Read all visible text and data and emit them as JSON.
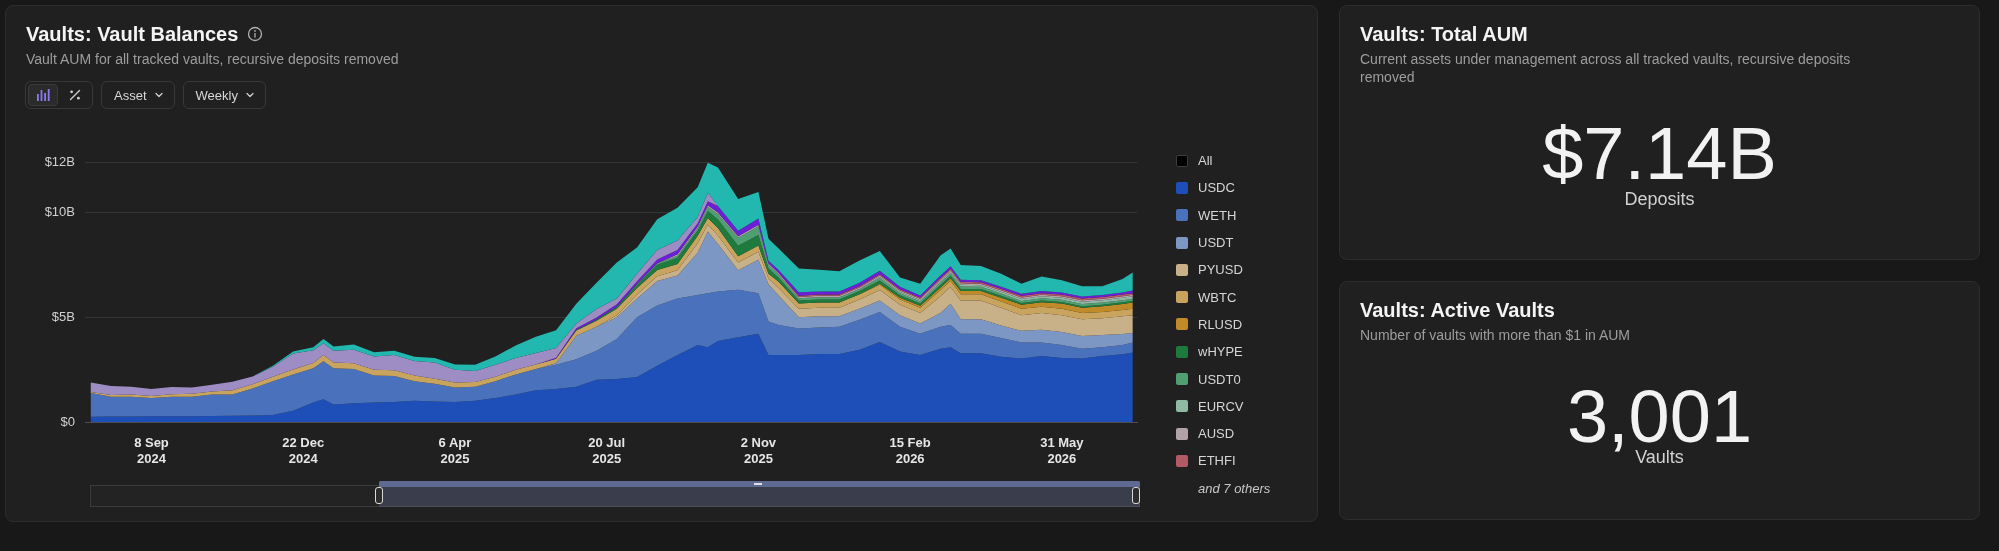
{
  "chart_data": [
    {
      "type": "area",
      "title": "Vaults: Vault Balances",
      "subtitle": "Vault AUM for all tracked vaults, recursive deposits removed",
      "stacked": true,
      "grid": "y",
      "legend": "right",
      "legend_title": "All",
      "annotations": [
        "Asset",
        "Weekly",
        "and 7 others"
      ],
      "x": [
        "2024-07-28",
        "2024-08-11",
        "2024-08-25",
        "2024-09-08",
        "2024-09-22",
        "2024-10-06",
        "2024-10-20",
        "2024-11-03",
        "2024-11-17",
        "2024-12-01",
        "2024-12-15",
        "2024-12-29",
        "2025-01-05",
        "2025-01-12",
        "2025-01-26",
        "2025-02-09",
        "2025-02-23",
        "2025-03-09",
        "2025-03-23",
        "2025-04-06",
        "2025-04-20",
        "2025-05-04",
        "2025-05-18",
        "2025-06-01",
        "2025-06-15",
        "2025-06-29",
        "2025-07-13",
        "2025-07-27",
        "2025-08-10",
        "2025-08-24",
        "2025-09-07",
        "2025-09-21",
        "2025-09-28",
        "2025-10-05",
        "2025-10-19",
        "2025-11-02",
        "2025-11-09",
        "2025-11-16",
        "2025-11-30",
        "2025-12-14",
        "2025-12-28",
        "2026-01-11",
        "2026-01-25",
        "2026-02-08",
        "2026-02-22",
        "2026-03-08",
        "2026-03-15",
        "2026-03-22",
        "2026-04-05",
        "2026-04-19",
        "2026-05-03",
        "2026-05-17",
        "2026-05-31",
        "2026-06-14",
        "2026-06-28",
        "2026-07-12",
        "2026-07-19"
      ],
      "xlim": [
        "2024-07-24",
        "2026-07-22"
      ],
      "xticks": [
        {
          "value": "2024-09-08",
          "label": "8 Sep\n2024"
        },
        {
          "value": "2024-12-22",
          "label": "22 Dec\n2024"
        },
        {
          "value": "2025-04-06",
          "label": "6 Apr\n2025"
        },
        {
          "value": "2025-07-20",
          "label": "20 Jul\n2025"
        },
        {
          "value": "2025-11-02",
          "label": "2 Nov\n2025"
        },
        {
          "value": "2026-02-15",
          "label": "15 Feb\n2026"
        },
        {
          "value": "2026-05-31",
          "label": "31 May\n2026"
        }
      ],
      "ylim": [
        0,
        12.37
      ],
      "yticks": [
        {
          "value": 0,
          "label": "$0"
        },
        {
          "value": 5,
          "label": "$5B"
        },
        {
          "value": 10,
          "label": "$10B"
        },
        {
          "value": 12.37,
          "label": "$12B"
        }
      ],
      "series": [
        {
          "name": "USDC",
          "color": "#1e4fb8",
          "values": [
            0.25,
            0.26,
            0.26,
            0.27,
            0.27,
            0.28,
            0.29,
            0.3,
            0.31,
            0.34,
            0.54,
            0.93,
            1.09,
            0.84,
            0.89,
            0.93,
            0.96,
            1.01,
            0.98,
            0.96,
            1.01,
            1.14,
            1.31,
            1.52,
            1.57,
            1.68,
            2.02,
            2.05,
            2.15,
            2.69,
            3.2,
            3.67,
            3.57,
            3.87,
            4.04,
            4.21,
            3.2,
            3.2,
            3.2,
            3.25,
            3.25,
            3.45,
            3.82,
            3.37,
            3.2,
            3.5,
            3.57,
            3.28,
            3.28,
            3.11,
            3.03,
            3.15,
            3.06,
            3.03,
            3.15,
            3.23,
            3.32
          ]
        },
        {
          "name": "WETH",
          "color": "#4a72bc",
          "values": [
            1.13,
            0.95,
            0.95,
            0.87,
            0.94,
            0.93,
            1.02,
            1.01,
            1.29,
            1.6,
            1.73,
            1.63,
            1.81,
            1.72,
            1.64,
            1.29,
            1.23,
            0.93,
            0.84,
            0.69,
            0.67,
            0.8,
            0.96,
            1.01,
            1.16,
            1.32,
            1.38,
            1.91,
            2.85,
            2.87,
            2.69,
            2.39,
            2.58,
            2.36,
            2.27,
            1.93,
            1.6,
            1.43,
            1.26,
            1.26,
            1.3,
            1.43,
            1.43,
            1.18,
            1.01,
            1.05,
            1.06,
            0.93,
            0.93,
            0.9,
            0.76,
            0.64,
            0.61,
            0.47,
            0.42,
            0.44,
            0.47
          ]
        },
        {
          "name": "USDT",
          "color": "#7d97c4",
          "values": [
            null,
            null,
            null,
            null,
            null,
            null,
            null,
            null,
            null,
            null,
            null,
            null,
            null,
            null,
            null,
            null,
            null,
            null,
            null,
            null,
            null,
            null,
            null,
            0,
            0.07,
            1.12,
            1.15,
            1.04,
            0.89,
            1.17,
            1.1,
            2.02,
            2.94,
            2.27,
            0.93,
            1.6,
            1.77,
            1.41,
            0.54,
            0.54,
            0.5,
            0.52,
            0.55,
            0.55,
            0.49,
            0.65,
            1.01,
            0.69,
            0.69,
            0.59,
            0.56,
            0.61,
            0.63,
            0.6,
            0.58,
            0.53,
            0.46
          ]
        },
        {
          "name": "PYUSD",
          "color": "#c8b088",
          "values": [
            null,
            null,
            null,
            null,
            null,
            null,
            null,
            null,
            null,
            null,
            null,
            null,
            null,
            null,
            null,
            null,
            null,
            null,
            null,
            null,
            null,
            null,
            null,
            null,
            null,
            null,
            0,
            0.1,
            0.2,
            0.22,
            0.25,
            0.45,
            0.34,
            0.4,
            0.37,
            0.38,
            0.28,
            0.35,
            0.4,
            0.4,
            0.4,
            0.45,
            0.5,
            0.5,
            0.5,
            0.8,
            0.8,
            0.9,
            0.9,
            0.85,
            0.75,
            0.8,
            0.8,
            0.8,
            0.8,
            0.85,
            0.85
          ]
        },
        {
          "name": "WBTC",
          "color": "#c8a45e",
          "values": [
            0.05,
            0.08,
            0.1,
            0.1,
            0.12,
            0.14,
            0.15,
            0.2,
            0.2,
            0.22,
            0.24,
            0.26,
            0.3,
            0.28,
            0.27,
            0.27,
            0.28,
            0.28,
            0.25,
            0.24,
            0.23,
            0.22,
            0.22,
            0.22,
            0.22,
            0.25,
            0.28,
            0.3,
            0.3,
            0.3,
            0.3,
            0.36,
            0.3,
            0.36,
            0.3,
            0.3,
            0.22,
            0.3,
            0.25,
            0.25,
            0.25,
            0.25,
            0.25,
            0.25,
            0.25,
            0.3,
            0.3,
            0.3,
            0.3,
            0.3,
            0.3,
            0.3,
            0.3,
            0.3,
            0.3,
            0.3,
            0.3
          ]
        },
        {
          "name": "RLUSD",
          "color": "#c08a28",
          "values": [
            null,
            null,
            null,
            null,
            null,
            null,
            null,
            null,
            null,
            null,
            null,
            null,
            null,
            null,
            null,
            null,
            null,
            null,
            null,
            null,
            null,
            null,
            null,
            null,
            null,
            null,
            null,
            null,
            null,
            null,
            null,
            null,
            null,
            null,
            null,
            null,
            null,
            null,
            null,
            null,
            null,
            0,
            0.05,
            0.08,
            0.1,
            0.12,
            0.12,
            0.15,
            0.15,
            0.18,
            0.2,
            0.22,
            0.25,
            0.25,
            0.27,
            0.28,
            0.3
          ]
        },
        {
          "name": "wHYPE",
          "color": "#1f7a3d",
          "values": [
            null,
            null,
            null,
            null,
            null,
            null,
            null,
            null,
            null,
            null,
            null,
            null,
            null,
            null,
            null,
            null,
            null,
            null,
            null,
            null,
            null,
            null,
            null,
            null,
            0,
            0.03,
            0.06,
            0.1,
            0.15,
            0.25,
            0.3,
            0.25,
            0.34,
            0.4,
            0.5,
            0.5,
            0.25,
            0.2,
            0.15,
            0.15,
            0.15,
            0.15,
            0.15,
            0.12,
            0.1,
            0.12,
            0.12,
            0.1,
            0.1,
            0.1,
            0.08,
            0.08,
            0.08,
            0.08,
            0.08,
            0.08,
            0.08
          ]
        },
        {
          "name": "USDT0",
          "color": "#4f9f72",
          "values": [
            null,
            null,
            null,
            null,
            null,
            null,
            null,
            null,
            null,
            null,
            null,
            null,
            null,
            null,
            null,
            null,
            null,
            null,
            null,
            null,
            null,
            null,
            null,
            null,
            null,
            null,
            null,
            0,
            0.05,
            0.08,
            0.1,
            0.12,
            0.2,
            0.27,
            0.38,
            0.42,
            0.17,
            0.15,
            0.1,
            0.1,
            0.1,
            0.1,
            0.12,
            0.1,
            0.1,
            0.12,
            0.12,
            0.12,
            0.1,
            0.1,
            0.1,
            0.1,
            0.1,
            0.1,
            0.1,
            0.1,
            0.1
          ]
        },
        {
          "name": "EURCV",
          "color": "#8fb9a3",
          "values": [
            null,
            null,
            null,
            null,
            null,
            null,
            null,
            null,
            null,
            null,
            null,
            null,
            null,
            null,
            null,
            null,
            null,
            null,
            null,
            null,
            null,
            null,
            null,
            null,
            null,
            null,
            null,
            null,
            null,
            null,
            null,
            null,
            null,
            null,
            null,
            null,
            null,
            null,
            null,
            null,
            null,
            0,
            0.05,
            0.05,
            0.06,
            0.07,
            0.07,
            0.08,
            0.08,
            0.09,
            0.09,
            0.1,
            0.1,
            0.11,
            0.11,
            0.12,
            0.12
          ]
        },
        {
          "name": "AUSD",
          "color": "#b3a3a9",
          "values": [
            null,
            null,
            null,
            null,
            null,
            null,
            null,
            null,
            null,
            null,
            null,
            null,
            null,
            null,
            null,
            null,
            null,
            null,
            null,
            null,
            null,
            null,
            null,
            null,
            null,
            null,
            null,
            null,
            null,
            0,
            0.07,
            0.07,
            0.07,
            0.07,
            0.07,
            0.07,
            0.07,
            0.07,
            0.07,
            0.07,
            0.07,
            0.07,
            0.07,
            0.07,
            0.07,
            0.07,
            0.07,
            0.07,
            0.07,
            0.07,
            0.07,
            0.07,
            0.07,
            0.07,
            0.07,
            0.07,
            0.07
          ]
        },
        {
          "name": "ETHFI",
          "color": "#b35a66",
          "values": [
            null,
            null,
            null,
            null,
            null,
            null,
            null,
            null,
            null,
            null,
            null,
            null,
            null,
            null,
            null,
            null,
            null,
            null,
            null,
            null,
            null,
            null,
            null,
            null,
            null,
            null,
            null,
            null,
            null,
            null,
            null,
            null,
            null,
            null,
            null,
            null,
            null,
            0,
            0.06,
            0.06,
            0.06,
            0.06,
            0.06,
            0.06,
            0.06,
            0.07,
            0.07,
            0.07,
            0.07,
            0.07,
            0.08,
            0.08,
            0.08,
            0.08,
            0.08,
            0.08,
            0.08
          ]
        },
        {
          "color": "#6b1fd6",
          "values": [
            null,
            null,
            null,
            null,
            null,
            null,
            null,
            null,
            null,
            null,
            null,
            null,
            null,
            null,
            null,
            null,
            null,
            null,
            null,
            null,
            null,
            null,
            null,
            0,
            0.05,
            0.08,
            0.1,
            0.12,
            0.13,
            0.18,
            0.2,
            0.15,
            0.2,
            0.31,
            0.27,
            0.3,
            0.14,
            0.15,
            0.16,
            0.15,
            0.15,
            0.17,
            0.17,
            0.12,
            0.1,
            0.12,
            0.12,
            0.1,
            0.1,
            0.1,
            0.1,
            0.1,
            0.1,
            0.1,
            0.1,
            0.1,
            0.12
          ]
        },
        {
          "color": "#9e8cc4",
          "values": [
            0.46,
            0.43,
            0.37,
            0.34,
            0.34,
            0.3,
            0.32,
            0.41,
            0.37,
            0.48,
            0.76,
            0.6,
            0.56,
            0.56,
            0.65,
            0.64,
            0.73,
            0.69,
            0.77,
            0.6,
            0.52,
            0.57,
            0.56,
            0.54,
            0.46,
            0.22,
            0.4,
            0.27,
            0.35,
            0.45,
            0.45,
            0.3,
            0.4,
            0,
            null,
            null,
            null,
            null,
            null,
            null,
            null,
            null,
            null,
            null,
            null,
            null,
            null,
            null,
            null,
            null,
            null,
            null,
            null,
            null,
            null,
            null,
            null
          ]
        },
        {
          "color": "#22b8b0",
          "values": [
            null,
            null,
            null,
            null,
            null,
            null,
            null,
            null,
            0,
            0.05,
            0.1,
            0.15,
            0.2,
            0.2,
            0.25,
            0.2,
            0.2,
            0.2,
            0.22,
            0.25,
            0.3,
            0.4,
            0.6,
            0.78,
            0.85,
            0.94,
            1.26,
            1.72,
            1.26,
            1.47,
            1.56,
            1.42,
            1.43,
            1.84,
            1.51,
            1.27,
            1.05,
            1.02,
            1.13,
            1.04,
            0.96,
            1.06,
            0.94,
            0.45,
            0.56,
            0.96,
            0.85,
            0.7,
            0.67,
            0.61,
            0.48,
            0.69,
            0.59,
            0.49,
            0.42,
            0.64,
            0.87
          ]
        }
      ]
    },
    {
      "type": "other",
      "title": "Vaults: Total AUM",
      "subtitle": "Current assets under management across all tracked vaults, recursive deposits removed",
      "annotations": [
        "$7.14B",
        "Deposits"
      ]
    },
    {
      "type": "other",
      "title": "Vaults: Active Vaults",
      "subtitle": "Number of vaults with more than $1 in AUM",
      "annotations": [
        "3,001",
        "Vaults"
      ]
    }
  ]
}
